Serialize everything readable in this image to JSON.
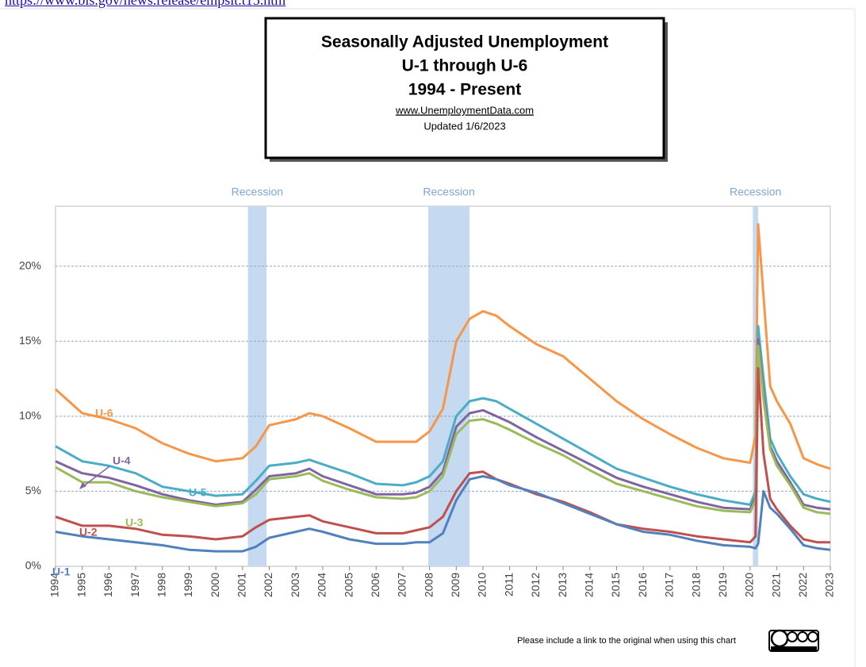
{
  "source_link": "https://www.bls.gov/news.release/empsit.t15.htm",
  "footer": "Please include a link to the original when using this chart",
  "chart_data": {
    "type": "line",
    "title": [
      "Seasonally Adjusted Unemployment",
      "U-1 through U-6",
      "1994 - Present"
    ],
    "website": "www.UnemploymentData.com",
    "updated": "Updated  1/6/2023",
    "x": [
      1994,
      1995,
      1996,
      1997,
      1998,
      1999,
      2000,
      2001,
      2001.5,
      2002,
      2003,
      2003.5,
      2004,
      2005,
      2006,
      2007,
      2007.5,
      2008,
      2008.5,
      2009,
      2009.5,
      2010,
      2010.5,
      2011,
      2012,
      2013,
      2014,
      2015,
      2016,
      2017,
      2018,
      2019,
      2020,
      2020.2,
      2020.3,
      2020.5,
      2020.75,
      2021,
      2021.5,
      2022,
      2022.5,
      2023
    ],
    "series": [
      {
        "name": "U-6",
        "color": "#f79646",
        "values": [
          11.8,
          10.2,
          9.8,
          9.2,
          8.2,
          7.5,
          7.0,
          7.2,
          8.0,
          9.4,
          9.8,
          10.2,
          10.0,
          9.2,
          8.3,
          8.3,
          8.3,
          9.0,
          10.5,
          15.0,
          16.5,
          17.0,
          16.7,
          16.0,
          14.8,
          14.0,
          12.5,
          11.0,
          9.8,
          8.8,
          7.9,
          7.2,
          6.9,
          8.7,
          22.8,
          18.0,
          12.0,
          11.0,
          9.5,
          7.2,
          6.8,
          6.5
        ]
      },
      {
        "name": "U-5",
        "color": "#4bacc6",
        "values": [
          8.0,
          7.0,
          6.7,
          6.2,
          5.3,
          5.0,
          4.7,
          4.8,
          5.7,
          6.7,
          6.9,
          7.1,
          6.8,
          6.2,
          5.5,
          5.4,
          5.6,
          6.0,
          7.0,
          10.0,
          11.0,
          11.2,
          11.0,
          10.5,
          9.5,
          8.5,
          7.5,
          6.5,
          5.9,
          5.3,
          4.8,
          4.4,
          4.1,
          5.0,
          16.0,
          12.5,
          8.5,
          7.5,
          6.0,
          4.8,
          4.5,
          4.3
        ]
      },
      {
        "name": "U-4",
        "color": "#8064a2",
        "values": [
          7.0,
          6.2,
          5.9,
          5.4,
          4.8,
          4.4,
          4.1,
          4.3,
          5.1,
          6.0,
          6.2,
          6.5,
          6.0,
          5.4,
          4.8,
          4.8,
          4.9,
          5.3,
          6.3,
          9.3,
          10.2,
          10.4,
          10.0,
          9.6,
          8.6,
          7.7,
          6.8,
          5.9,
          5.3,
          4.8,
          4.3,
          3.9,
          3.8,
          4.6,
          15.1,
          11.5,
          8.0,
          7.0,
          5.6,
          4.1,
          3.9,
          3.8
        ]
      },
      {
        "name": "U-3",
        "color": "#9bbb59",
        "values": [
          6.6,
          5.6,
          5.6,
          5.0,
          4.6,
          4.3,
          4.0,
          4.2,
          4.8,
          5.8,
          6.0,
          6.2,
          5.7,
          5.1,
          4.6,
          4.5,
          4.6,
          5.0,
          6.0,
          8.8,
          9.7,
          9.8,
          9.5,
          9.1,
          8.2,
          7.4,
          6.4,
          5.5,
          5.0,
          4.5,
          4.0,
          3.7,
          3.6,
          4.4,
          14.7,
          11.1,
          7.8,
          6.7,
          5.4,
          3.9,
          3.6,
          3.5
        ]
      },
      {
        "name": "U-2",
        "color": "#c0504d",
        "values": [
          3.3,
          2.7,
          2.7,
          2.5,
          2.1,
          2.0,
          1.8,
          2.0,
          2.6,
          3.1,
          3.3,
          3.4,
          3.0,
          2.6,
          2.2,
          2.2,
          2.4,
          2.6,
          3.3,
          5.0,
          6.2,
          6.3,
          5.8,
          5.5,
          4.8,
          4.3,
          3.6,
          2.8,
          2.5,
          2.3,
          2.0,
          1.8,
          1.6,
          2.0,
          13.2,
          7.5,
          4.5,
          3.8,
          2.7,
          1.8,
          1.6,
          1.6
        ]
      },
      {
        "name": "U-1",
        "color": "#4f81bd",
        "values": [
          2.3,
          2.0,
          1.8,
          1.6,
          1.4,
          1.1,
          1.0,
          1.0,
          1.3,
          1.9,
          2.3,
          2.5,
          2.3,
          1.8,
          1.5,
          1.5,
          1.6,
          1.6,
          2.2,
          4.4,
          5.8,
          6.0,
          5.8,
          5.4,
          4.9,
          4.2,
          3.5,
          2.8,
          2.3,
          2.1,
          1.7,
          1.4,
          1.3,
          1.2,
          1.5,
          5.0,
          3.9,
          3.5,
          2.5,
          1.4,
          1.2,
          1.1
        ]
      }
    ],
    "recessions": [
      {
        "label": "Recession",
        "start": 2001.2,
        "end": 2001.9
      },
      {
        "label": "Recession",
        "start": 2007.95,
        "end": 2009.5
      },
      {
        "label": "Recession",
        "start": 2020.1,
        "end": 2020.3
      }
    ],
    "xlim": [
      1994,
      2023
    ],
    "xticks": [
      1994,
      1995,
      1996,
      1997,
      1998,
      1999,
      2000,
      2001,
      2002,
      2003,
      2004,
      2005,
      2006,
      2007,
      2008,
      2009,
      2010,
      2011,
      2012,
      2013,
      2014,
      2015,
      2016,
      2017,
      2018,
      2019,
      2020,
      2021,
      2022,
      2023
    ],
    "ylim": [
      0,
      24
    ],
    "yticks": [
      {
        "value": 0,
        "label": "0%"
      },
      {
        "value": 5,
        "label": "5%"
      },
      {
        "value": 10,
        "label": "10%"
      },
      {
        "value": 15,
        "label": "15%"
      },
      {
        "value": 20,
        "label": "20%"
      }
    ],
    "grid": true,
    "recession_color": "#c5d9f1"
  }
}
